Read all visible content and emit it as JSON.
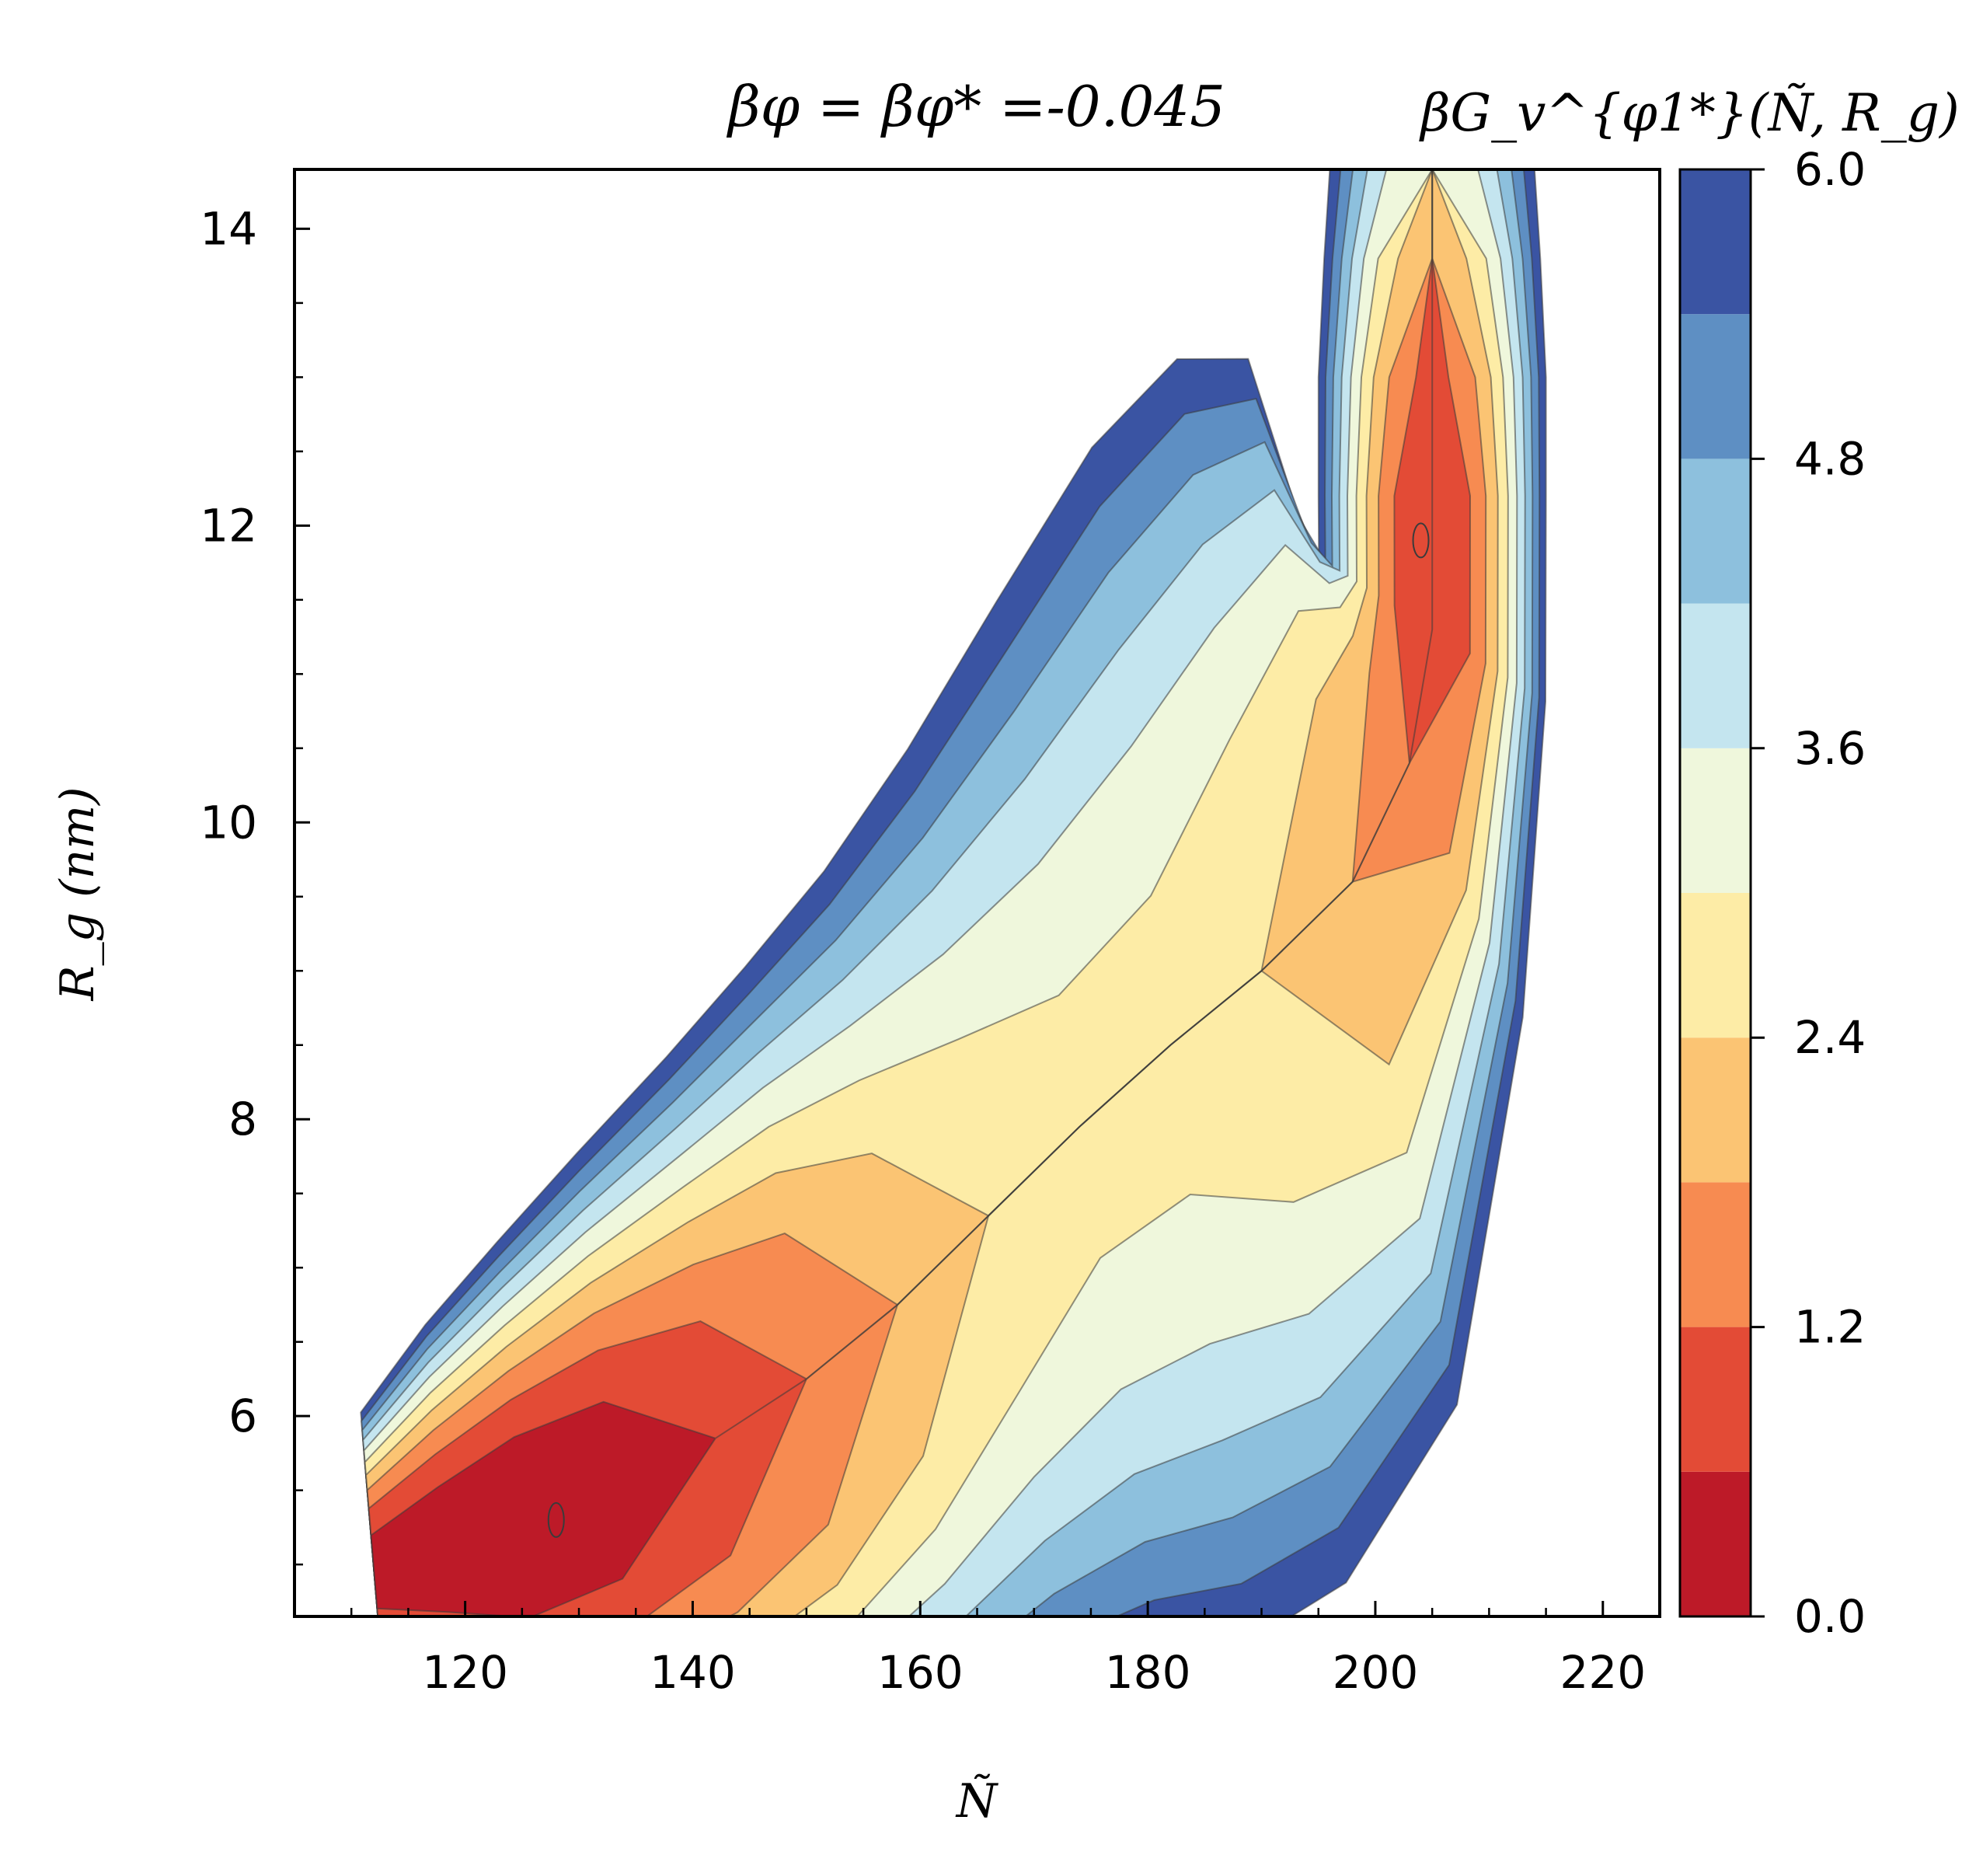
{
  "chart_data": {
    "type": "heatmap",
    "title": "βφ = βφ* =-0.045",
    "xlabel": "Ñ",
    "ylabel": "R_g (nm)",
    "xlim": [
      105,
      225
    ],
    "ylim": [
      4.65,
      14.4
    ],
    "x_ticks": [
      "120",
      "140",
      "160",
      "180",
      "200",
      "220"
    ],
    "y_ticks": [
      "6",
      "8",
      "10",
      "12",
      "14"
    ],
    "colorbar": {
      "label": "βG_v^{φ1*}(Ñ, R_g)",
      "range": [
        0.0,
        6.0
      ],
      "ticks": [
        "0.0",
        "1.2",
        "2.4",
        "3.6",
        "4.8",
        "6.0"
      ],
      "levels": [
        0.0,
        0.6,
        1.2,
        1.8,
        2.4,
        3.0,
        3.6,
        4.2,
        4.8,
        5.4,
        6.0
      ],
      "colors": [
        "#bd1a28",
        "#e34b36",
        "#f78b51",
        "#fbc473",
        "#fdeca6",
        "#eff7dc",
        "#c4e5ef",
        "#8dc0dd",
        "#5e8fc3",
        "#3a54a3"
      ]
    },
    "basins": [
      {
        "N": 128,
        "Rg": 5.3,
        "min_free_energy": 0.0
      },
      {
        "N": 204,
        "Rg": 11.9,
        "min_free_energy": 0.6
      }
    ],
    "centerline": [
      [
        112,
        4.95
      ],
      [
        118,
        5.1
      ],
      [
        125,
        5.25
      ],
      [
        133,
        5.5
      ],
      [
        142,
        5.85
      ],
      [
        150,
        6.25
      ],
      [
        158,
        6.75
      ],
      [
        166,
        7.35
      ],
      [
        174,
        7.95
      ],
      [
        182,
        8.5
      ],
      [
        190,
        9.0
      ],
      [
        198,
        9.6
      ],
      [
        203,
        10.4
      ],
      [
        205,
        11.3
      ],
      [
        205,
        12.2
      ],
      [
        205,
        13.0
      ],
      [
        205,
        13.8
      ],
      [
        205,
        14.4
      ]
    ],
    "halfwidth_N": [
      4.0,
      5.5,
      7.0,
      8.0,
      9.0,
      9.5,
      10.0,
      10.5,
      11.0,
      11.0,
      11.5,
      11.5,
      10.5,
      10.0,
      10.0,
      10.0,
      9.5,
      9.0
    ],
    "halfwidth_Rg": [
      0.25,
      0.35,
      0.45,
      0.55,
      0.65,
      0.75,
      0.85,
      0.95,
      1.05,
      1.15,
      1.2,
      1.3,
      1.2,
      1.2,
      1.2,
      1.2,
      1.2,
      1.2
    ],
    "tube_min_free_energy": [
      0.3,
      0.15,
      0.0,
      0.2,
      0.7,
      1.2,
      1.9,
      2.5,
      2.8,
      2.8,
      2.5,
      1.9,
      1.2,
      0.6,
      0.6,
      1.1,
      2.0,
      3.0
    ]
  }
}
